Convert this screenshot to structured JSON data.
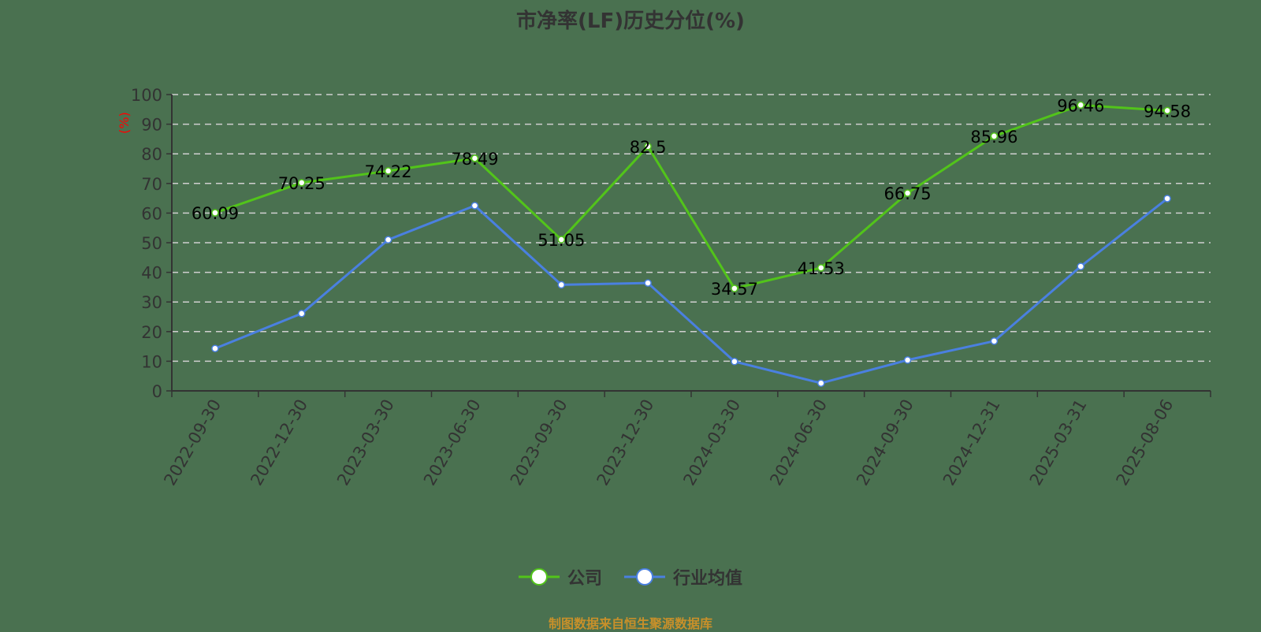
{
  "title": "市净率(LF)历史分位(%)",
  "source_note": "制图数据来自恒生聚源数据库",
  "colors": {
    "company": "#52c41a",
    "industry": "#4a80e0",
    "grid": "#d0d0d0",
    "axis": "#333333",
    "unit_label": "#ff0000"
  },
  "legend": [
    {
      "label": "公司",
      "color": "#52c41a"
    },
    {
      "label": "行业均值",
      "color": "#4a80e0"
    }
  ],
  "chart_data": {
    "type": "line",
    "title": "市净率(LF)历史分位(%)",
    "xlabel": "",
    "ylabel": "(%)",
    "ylim": [
      0,
      100
    ],
    "yticks": [
      0,
      10,
      20,
      30,
      40,
      50,
      60,
      70,
      80,
      90,
      100
    ],
    "grid": true,
    "legend_position": "bottom",
    "categories": [
      "2022-09-30",
      "2022-12-30",
      "2023-03-30",
      "2023-06-30",
      "2023-09-30",
      "2023-12-30",
      "2024-03-30",
      "2024-06-30",
      "2024-09-30",
      "2024-12-31",
      "2025-03-31",
      "2025-08-06"
    ],
    "series": [
      {
        "name": "公司",
        "values": [
          60.09,
          70.25,
          74.22,
          78.49,
          51.05,
          82.5,
          34.57,
          41.53,
          66.75,
          85.96,
          96.46,
          94.58
        ],
        "labels_shown": true
      },
      {
        "name": "行业均值",
        "values": [
          14.3,
          26.1,
          51.0,
          62.5,
          35.8,
          36.4,
          9.9,
          2.6,
          10.4,
          16.8,
          42.0,
          64.9
        ],
        "labels_shown": false
      }
    ]
  }
}
